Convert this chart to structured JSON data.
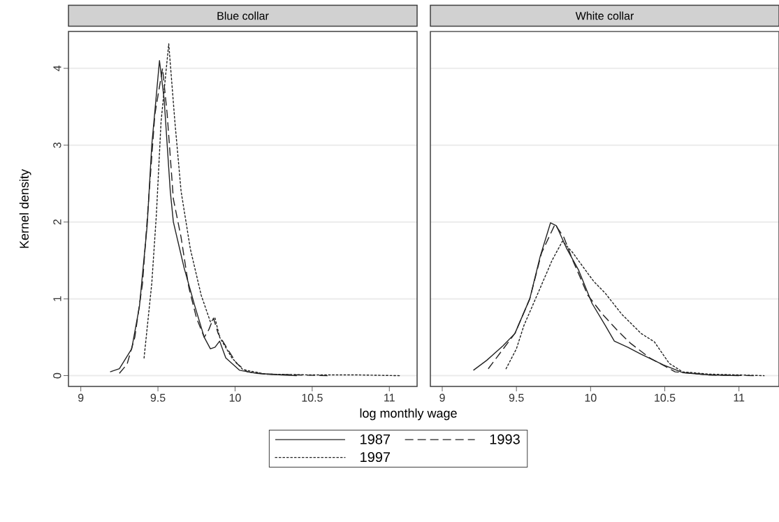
{
  "chart_data": [
    {
      "type": "line",
      "title": "Blue collar",
      "xlabel": "log monthly wage",
      "ylabel": "Kernel density",
      "xlim": [
        8.92,
        11.18
      ],
      "ylim": [
        -0.14,
        4.48
      ],
      "xticks": [
        9,
        9.5,
        10,
        10.5,
        11
      ],
      "yticks": [
        0,
        1,
        2,
        3,
        4
      ],
      "grid": "y",
      "legend": "bottom",
      "series": [
        {
          "name": "1987",
          "color": "#222222",
          "line_style": "solid",
          "x": [
            9.19,
            9.25,
            9.33,
            9.38,
            9.43,
            9.46,
            9.51,
            9.54,
            9.58,
            9.6,
            9.67,
            9.74,
            9.8,
            9.84,
            9.87,
            9.9,
            9.94,
            10.03,
            10.14,
            10.3,
            10.4
          ],
          "values": [
            0.05,
            0.09,
            0.35,
            0.9,
            1.95,
            3.0,
            4.1,
            3.6,
            2.4,
            2.0,
            1.4,
            0.9,
            0.5,
            0.35,
            0.37,
            0.45,
            0.23,
            0.07,
            0.03,
            0.01,
            0
          ]
        },
        {
          "name": "1993",
          "color": "#222222",
          "line_style": "dashed",
          "x": [
            9.25,
            9.3,
            9.35,
            9.4,
            9.44,
            9.48,
            9.53,
            9.56,
            9.6,
            9.65,
            9.7,
            9.75,
            9.8,
            9.83,
            9.86,
            9.89,
            9.95,
            10.01,
            10.08,
            10.2,
            10.4,
            10.6
          ],
          "values": [
            0.03,
            0.15,
            0.5,
            1.2,
            2.3,
            3.4,
            4.0,
            3.4,
            2.3,
            1.8,
            1.15,
            0.75,
            0.5,
            0.6,
            0.75,
            0.55,
            0.35,
            0.16,
            0.05,
            0.02,
            0.01,
            0
          ]
        },
        {
          "name": "1997",
          "color": "#222222",
          "line_style": "dotted",
          "x": [
            9.41,
            9.46,
            9.49,
            9.52,
            9.57,
            9.61,
            9.65,
            9.71,
            9.78,
            9.84,
            9.87,
            9.9,
            9.98,
            10.05,
            10.2,
            10.5,
            10.8,
            11.07
          ],
          "values": [
            0.23,
            1.2,
            2.1,
            3.3,
            4.32,
            3.3,
            2.4,
            1.65,
            1.05,
            0.7,
            0.75,
            0.5,
            0.23,
            0.08,
            0.02,
            0.01,
            0.01,
            0
          ]
        }
      ]
    },
    {
      "type": "line",
      "title": "White collar",
      "xlim": [
        8.92,
        11.27
      ],
      "ylim": [
        -0.14,
        4.48
      ],
      "xticks": [
        9,
        9.5,
        10,
        10.5,
        11
      ],
      "yticks": [
        0,
        1,
        2,
        3,
        4
      ],
      "grid": "y",
      "tick_labels": "x",
      "series": [
        {
          "color": "#222222",
          "line_style": "solid",
          "x": [
            9.21,
            9.3,
            9.41,
            9.49,
            9.59,
            9.66,
            9.73,
            9.77,
            9.84,
            9.92,
            10.01,
            10.1,
            10.16,
            10.25,
            10.34,
            10.49,
            10.62,
            10.8,
            11.0
          ],
          "values": [
            0.07,
            0.2,
            0.39,
            0.55,
            1.0,
            1.55,
            1.99,
            1.95,
            1.65,
            1.37,
            0.94,
            0.65,
            0.45,
            0.37,
            0.28,
            0.14,
            0.04,
            0.01,
            0
          ]
        },
        {
          "color": "#222222",
          "line_style": "dashed",
          "x": [
            9.31,
            9.4,
            9.49,
            9.59,
            9.67,
            9.76,
            9.82,
            9.88,
            9.93,
            9.98,
            10.08,
            10.18,
            10.27,
            10.4,
            10.57,
            10.8,
            11.1
          ],
          "values": [
            0.09,
            0.32,
            0.55,
            1.0,
            1.6,
            1.97,
            1.8,
            1.5,
            1.28,
            1.05,
            0.8,
            0.59,
            0.42,
            0.23,
            0.05,
            0.01,
            0
          ]
        },
        {
          "color": "#222222",
          "line_style": "dotted",
          "x": [
            9.43,
            9.5,
            9.55,
            9.66,
            9.74,
            9.81,
            9.88,
            9.94,
            10.02,
            10.1,
            10.21,
            10.34,
            10.43,
            10.53,
            10.62,
            10.8,
            11.0,
            11.17
          ],
          "values": [
            0.09,
            0.35,
            0.65,
            1.14,
            1.5,
            1.75,
            1.6,
            1.44,
            1.23,
            1.07,
            0.8,
            0.55,
            0.44,
            0.16,
            0.05,
            0.02,
            0.01,
            0
          ]
        }
      ]
    }
  ]
}
